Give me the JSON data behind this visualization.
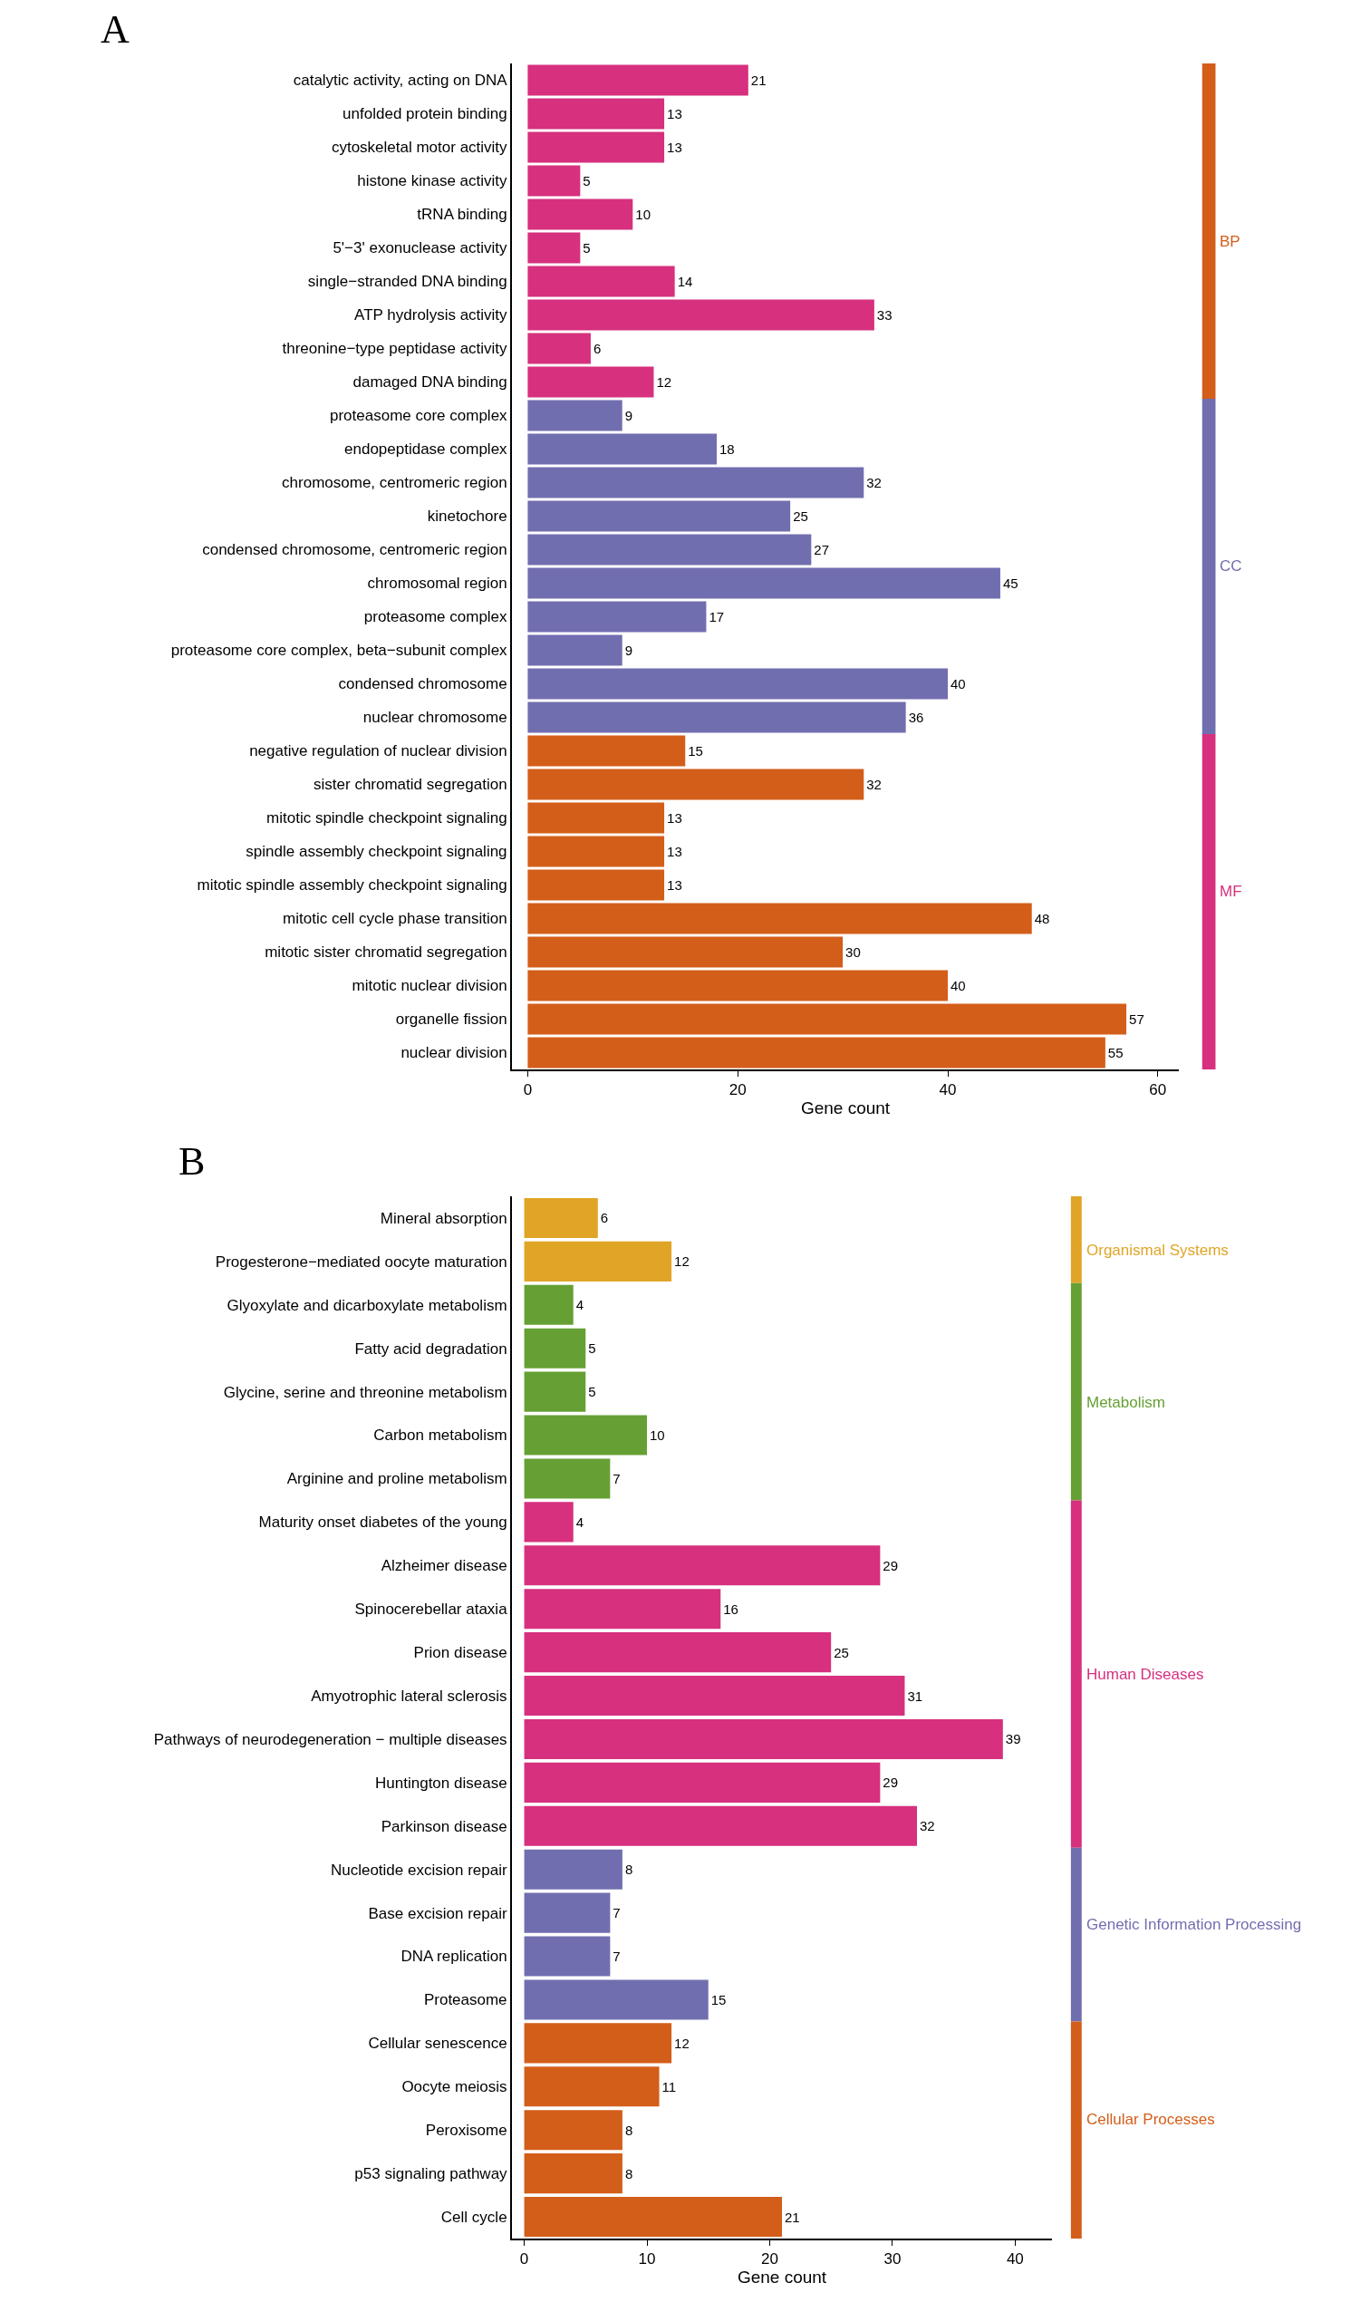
{
  "chart_data": [
    {
      "type": "bar",
      "title": "A",
      "orientation": "horizontal",
      "xlabel": "Gene count",
      "xlim": [
        -1.5,
        62
      ],
      "xticks": [
        0,
        20,
        40,
        60
      ],
      "grid": false,
      "data_labels": true,
      "legend": "right",
      "categories": [
        "catalytic activity, acting on DNA",
        "unfolded protein binding",
        "cytoskeletal motor activity",
        "histone kinase activity",
        "tRNA binding",
        "5'−3' exonuclease activity",
        "single−stranded DNA binding",
        "ATP hydrolysis activity",
        "threonine−type peptidase activity",
        "damaged DNA binding",
        "proteasome core complex",
        "endopeptidase complex",
        "chromosome, centromeric region",
        "kinetochore",
        "condensed chromosome, centromeric region",
        "chromosomal region",
        "proteasome complex",
        "proteasome core complex, beta−subunit complex",
        "condensed chromosome",
        "nuclear chromosome",
        "negative regulation of nuclear division",
        "sister chromatid segregation",
        "mitotic spindle checkpoint signaling",
        "spindle assembly checkpoint signaling",
        "mitotic spindle assembly checkpoint signaling",
        "mitotic cell cycle phase transition",
        "mitotic sister chromatid segregation",
        "mitotic nuclear division",
        "organelle fission",
        "nuclear division"
      ],
      "series": [
        {
          "name": "BP",
          "color": "#d35e1a",
          "values": [
            null,
            null,
            null,
            null,
            null,
            null,
            null,
            null,
            null,
            null,
            null,
            null,
            null,
            null,
            null,
            null,
            null,
            null,
            null,
            null,
            15,
            32,
            13,
            13,
            13,
            48,
            30,
            40,
            57,
            55
          ]
        },
        {
          "name": "CC",
          "color": "#716eb0",
          "values": [
            null,
            null,
            null,
            null,
            null,
            null,
            null,
            null,
            null,
            null,
            9,
            18,
            32,
            25,
            27,
            45,
            17,
            9,
            40,
            36,
            null,
            null,
            null,
            null,
            null,
            null,
            null,
            null,
            null,
            null
          ]
        },
        {
          "name": "MF",
          "color": "#d6307e",
          "values": [
            21,
            13,
            13,
            5,
            10,
            5,
            14,
            33,
            6,
            12,
            null,
            null,
            null,
            null,
            null,
            null,
            null,
            null,
            null,
            null,
            null,
            null,
            null,
            null,
            null,
            null,
            null,
            null,
            null,
            null
          ]
        }
      ]
    },
    {
      "type": "bar",
      "title": "B",
      "orientation": "horizontal",
      "xlabel": "Gene count",
      "xlim": [
        -1,
        43
      ],
      "xticks": [
        0,
        10,
        20,
        30,
        40
      ],
      "grid": false,
      "data_labels": true,
      "legend": "right",
      "categories": [
        "Mineral absorption",
        "Progesterone−mediated oocyte maturation",
        "Glyoxylate and dicarboxylate metabolism",
        "Fatty acid degradation",
        "Glycine, serine and threonine metabolism",
        "Carbon metabolism",
        "Arginine and proline metabolism",
        "Maturity onset diabetes of the young",
        "Alzheimer disease",
        "Spinocerebellar ataxia",
        "Prion disease",
        "Amyotrophic lateral sclerosis",
        "Pathways of neurodegeneration − multiple diseases",
        "Huntington disease",
        "Parkinson disease",
        "Nucleotide excision repair",
        "Base excision repair",
        "DNA replication",
        "Proteasome",
        "Cellular senescence",
        "Oocyte meiosis",
        "Peroxisome",
        "p53 signaling pathway",
        "Cell cycle"
      ],
      "series": [
        {
          "name": "Organismal Systems",
          "color": "#e0a526",
          "values": [
            6,
            12,
            null,
            null,
            null,
            null,
            null,
            null,
            null,
            null,
            null,
            null,
            null,
            null,
            null,
            null,
            null,
            null,
            null,
            null,
            null,
            null,
            null,
            null
          ]
        },
        {
          "name": "Metabolism",
          "color": "#66a034",
          "values": [
            null,
            null,
            4,
            5,
            5,
            10,
            7,
            null,
            null,
            null,
            null,
            null,
            null,
            null,
            null,
            null,
            null,
            null,
            null,
            null,
            null,
            null,
            null,
            null
          ]
        },
        {
          "name": "Human Diseases",
          "color": "#d6307e",
          "values": [
            null,
            null,
            null,
            null,
            null,
            null,
            null,
            4,
            29,
            16,
            25,
            31,
            39,
            29,
            32,
            null,
            null,
            null,
            null,
            null,
            null,
            null,
            null,
            null
          ]
        },
        {
          "name": "Genetic Information Processing",
          "color": "#716eb0",
          "values": [
            null,
            null,
            null,
            null,
            null,
            null,
            null,
            null,
            null,
            null,
            null,
            null,
            null,
            null,
            null,
            8,
            7,
            7,
            15,
            null,
            null,
            null,
            null,
            null
          ]
        },
        {
          "name": "Cellular Processes",
          "color": "#d35e1a",
          "values": [
            null,
            null,
            null,
            null,
            null,
            null,
            null,
            null,
            null,
            null,
            null,
            null,
            null,
            null,
            null,
            null,
            null,
            null,
            null,
            12,
            11,
            8,
            8,
            21
          ]
        }
      ]
    }
  ]
}
